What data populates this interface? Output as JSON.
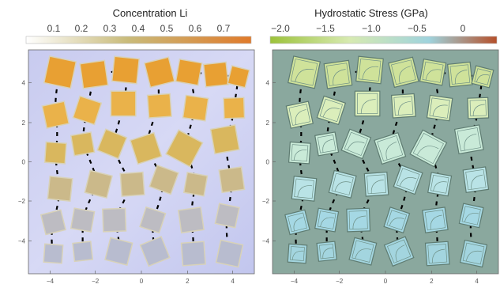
{
  "chart_data": [
    {
      "type": "heatmap",
      "title": "Concentration Li",
      "colorbar": {
        "ticks": [
          "0.1",
          "0.2",
          "0.3",
          "0.4",
          "0.5",
          "0.6",
          "0.7"
        ],
        "range": [
          0.0,
          0.75
        ],
        "colors": {
          "low": "#ffffff",
          "mid": "#c9b35a",
          "high": "#e07a2a"
        }
      },
      "xaxis": {
        "ticks": [
          "−4",
          "−2",
          "0",
          "2",
          "4"
        ],
        "range": [
          -5.5,
          5.5
        ]
      },
      "yaxis": {
        "ticks": [
          "4",
          "2",
          "0",
          "−2",
          "−4"
        ],
        "range": [
          -5.5,
          5.5
        ]
      },
      "legend": "top",
      "background": "gradient blue"
    },
    {
      "type": "heatmap",
      "title": "Hydrostatic Stress (GPa)",
      "colorbar": {
        "ticks": [
          "−2.0",
          "−1.5",
          "−1.0",
          "−0.5",
          "0"
        ],
        "range": [
          -2.2,
          0.3
        ],
        "colors": {
          "low": "#9cc23a",
          "mid": "#b9e2ea",
          "high": "#b5502a"
        }
      },
      "xaxis": {
        "ticks": [
          "−4",
          "−2",
          "0",
          "2",
          "4"
        ],
        "range": [
          -5.5,
          5.5
        ]
      },
      "yaxis": {
        "ticks": [
          "4",
          "2",
          "0",
          "−2",
          "−4"
        ],
        "range": [
          -5.5,
          5.5
        ]
      },
      "legend": "top",
      "background": "#8aa89e"
    }
  ]
}
